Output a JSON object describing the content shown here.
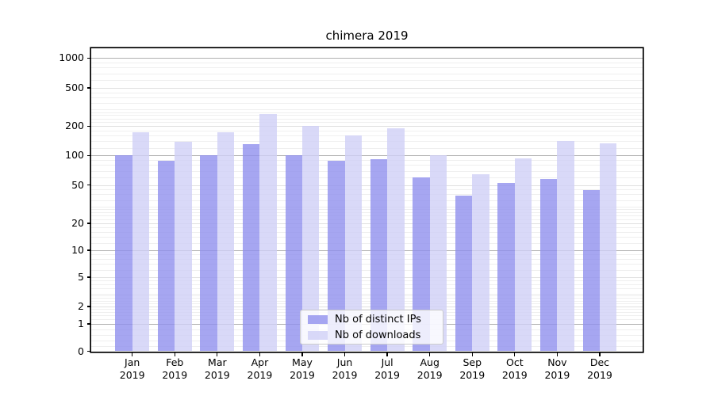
{
  "title": "chimera 2019",
  "chart_data": {
    "type": "bar",
    "title": "chimera 2019",
    "categories": [
      "Jan 2019",
      "Feb 2019",
      "Mar 2019",
      "Apr 2019",
      "May 2019",
      "Jun 2019",
      "Jul 2019",
      "Aug 2019",
      "Sep 2019",
      "Oct 2019",
      "Nov 2019",
      "Dec 2019"
    ],
    "series": [
      {
        "name": "Nb of distinct IPs",
        "color": "rgba(144,144,238,0.8)",
        "solid_color": "#a6a6f1",
        "values": [
          100,
          88,
          100,
          131,
          100,
          89,
          92,
          60,
          39,
          53,
          58,
          44
        ]
      },
      {
        "name": "Nb of downloads",
        "color": "rgba(208,208,246,0.8)",
        "solid_color": "#d9d9f8",
        "values": [
          172,
          137,
          172,
          265,
          203,
          161,
          189,
          100,
          64,
          93,
          140,
          133
        ]
      }
    ],
    "yticks": [
      0,
      1,
      2,
      5,
      10,
      20,
      50,
      100,
      200,
      500,
      1000
    ],
    "yscale": "symlog",
    "ylim": [
      0,
      1000
    ],
    "xlabel": "",
    "ylabel": "",
    "grid": true,
    "legend_position": "lower center"
  },
  "colors": {
    "major_grid": "#b0b0b0",
    "light_grid": "#e0e0e0",
    "minor_grid": "#efefef",
    "spine": "#000000",
    "background": "#ffffff"
  }
}
